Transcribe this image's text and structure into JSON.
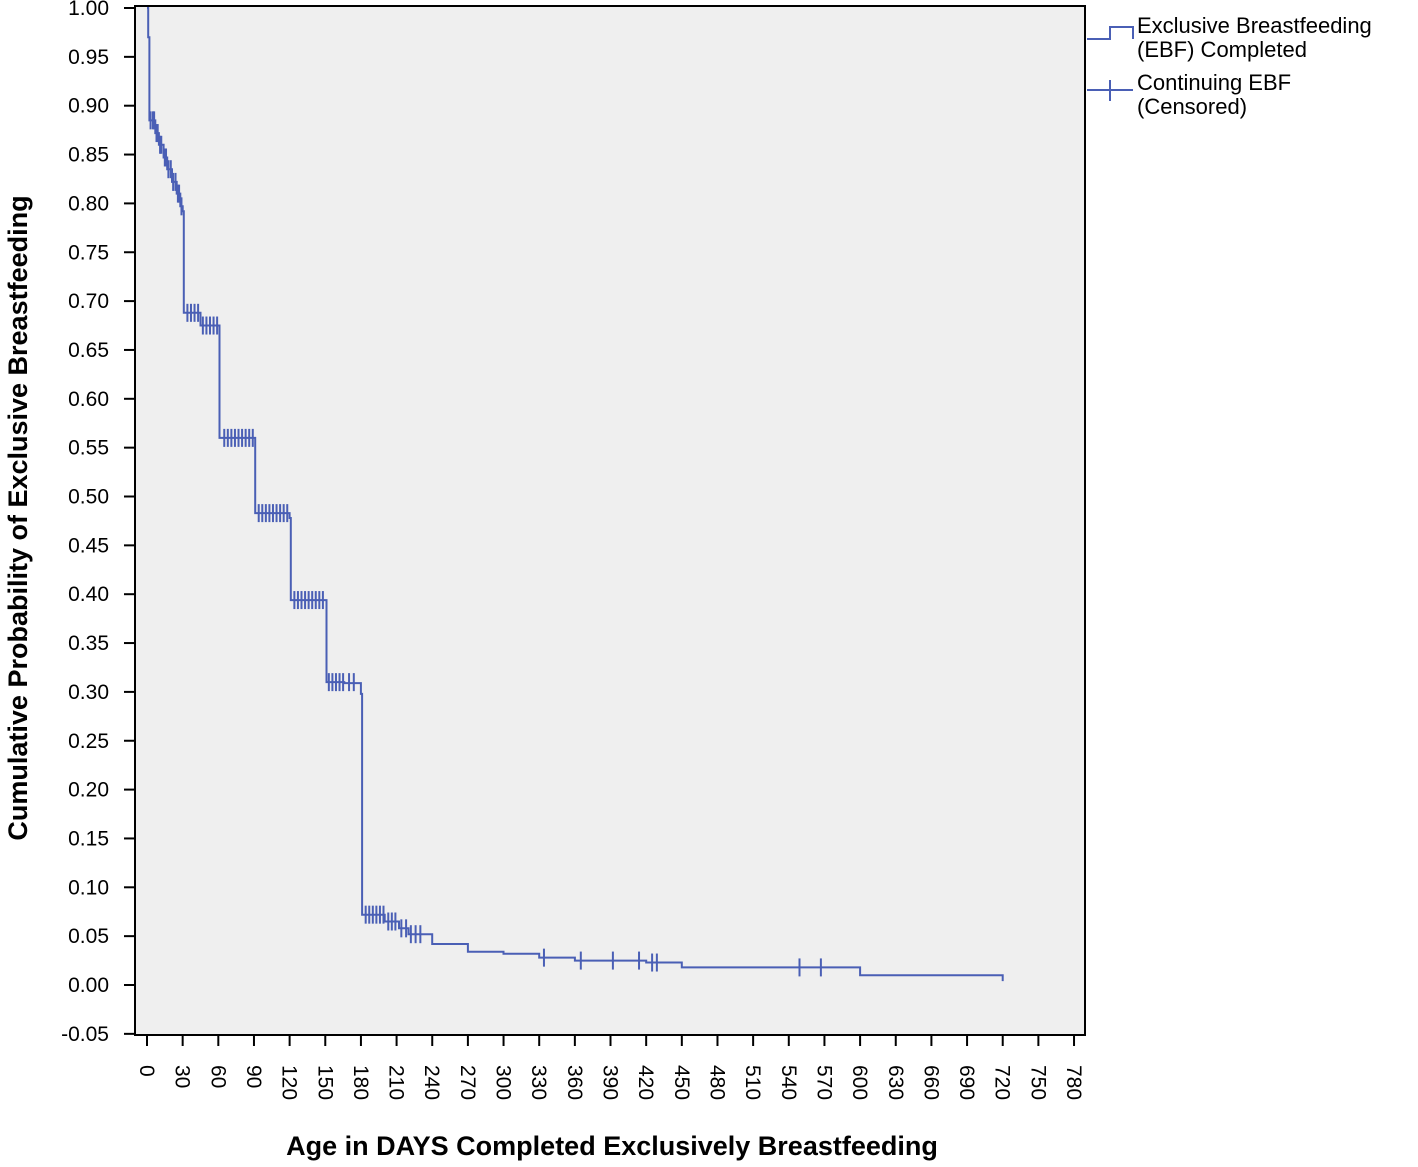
{
  "chart_data": {
    "type": "line",
    "subtype": "kaplan-meier",
    "title": "",
    "xlabel": "Age in DAYS Completed Exclusively Breastfeeding",
    "ylabel": "Cumulative Probability of Exclusive Breastfeeding",
    "xlim": [
      -10,
      790
    ],
    "ylim": [
      -0.05,
      1.0
    ],
    "x_ticks": [
      0,
      30,
      60,
      90,
      120,
      150,
      180,
      210,
      240,
      270,
      300,
      330,
      360,
      390,
      420,
      450,
      480,
      510,
      540,
      570,
      600,
      630,
      660,
      690,
      720,
      750,
      780
    ],
    "x_tick_labels": [
      "0",
      "30",
      "60",
      "90",
      "120",
      "150",
      "180",
      "210",
      "240",
      "270",
      "300",
      "330",
      "360",
      "390",
      "420",
      "450",
      "480",
      "510",
      "540",
      "570",
      "600",
      "630",
      "660",
      "690",
      "720",
      "750",
      "780"
    ],
    "y_ticks": [
      -0.05,
      0.0,
      0.05,
      0.1,
      0.15,
      0.2,
      0.25,
      0.3,
      0.35,
      0.4,
      0.45,
      0.5,
      0.55,
      0.6,
      0.65,
      0.7,
      0.75,
      0.8,
      0.85,
      0.9,
      0.95,
      1.0
    ],
    "y_tick_labels": [
      "-0.05",
      "0.00",
      "0.05",
      "0.10",
      "0.15",
      "0.20",
      "0.25",
      "0.30",
      "0.35",
      "0.40",
      "0.45",
      "0.50",
      "0.55",
      "0.60",
      "0.65",
      "0.70",
      "0.75",
      "0.80",
      "0.85",
      "0.90",
      "0.95",
      "1.00"
    ],
    "grid": false,
    "legend_position": "right-top",
    "colors": {
      "line": "#4a5fb5",
      "plot_bg": "#efefef",
      "axis": "#000000"
    },
    "series": [
      {
        "name": "Exclusive Breastfeeding (EBF) Completed",
        "step_points": [
          [
            0,
            1.0
          ],
          [
            1,
            1.0
          ],
          [
            1,
            0.97
          ],
          [
            2,
            0.97
          ],
          [
            2,
            0.885
          ],
          [
            7,
            0.885
          ],
          [
            7,
            0.872
          ],
          [
            10,
            0.872
          ],
          [
            10,
            0.86
          ],
          [
            14,
            0.86
          ],
          [
            14,
            0.847
          ],
          [
            17,
            0.847
          ],
          [
            17,
            0.835
          ],
          [
            21,
            0.835
          ],
          [
            21,
            0.822
          ],
          [
            25,
            0.822
          ],
          [
            25,
            0.81
          ],
          [
            28,
            0.81
          ],
          [
            28,
            0.797
          ],
          [
            30,
            0.797
          ],
          [
            30,
            0.792
          ],
          [
            31,
            0.792
          ],
          [
            31,
            0.688
          ],
          [
            45,
            0.688
          ],
          [
            45,
            0.675
          ],
          [
            61,
            0.675
          ],
          [
            61,
            0.56
          ],
          [
            91,
            0.56
          ],
          [
            91,
            0.483
          ],
          [
            120,
            0.483
          ],
          [
            120,
            0.478
          ],
          [
            121,
            0.478
          ],
          [
            121,
            0.394
          ],
          [
            151,
            0.394
          ],
          [
            151,
            0.31
          ],
          [
            166,
            0.31
          ],
          [
            166,
            0.309
          ],
          [
            180,
            0.309
          ],
          [
            180,
            0.298
          ],
          [
            181,
            0.298
          ],
          [
            181,
            0.072
          ],
          [
            200,
            0.072
          ],
          [
            200,
            0.065
          ],
          [
            212,
            0.065
          ],
          [
            212,
            0.058
          ],
          [
            220,
            0.058
          ],
          [
            220,
            0.052
          ],
          [
            240,
            0.052
          ],
          [
            240,
            0.042
          ],
          [
            270,
            0.042
          ],
          [
            270,
            0.034
          ],
          [
            300,
            0.034
          ],
          [
            300,
            0.032
          ],
          [
            330,
            0.032
          ],
          [
            330,
            0.028
          ],
          [
            360,
            0.028
          ],
          [
            360,
            0.025
          ],
          [
            420,
            0.025
          ],
          [
            420,
            0.023
          ],
          [
            450,
            0.023
          ],
          [
            450,
            0.018
          ],
          [
            600,
            0.018
          ],
          [
            600,
            0.01
          ],
          [
            720,
            0.01
          ],
          [
            720,
            0.004
          ]
        ]
      },
      {
        "name": "Continuing EBF (Censored)",
        "censored_marks": [
          [
            3,
            0.885
          ],
          [
            5,
            0.885
          ],
          [
            6,
            0.885
          ],
          [
            8,
            0.872
          ],
          [
            9,
            0.872
          ],
          [
            11,
            0.86
          ],
          [
            12,
            0.86
          ],
          [
            15,
            0.847
          ],
          [
            16,
            0.847
          ],
          [
            18,
            0.835
          ],
          [
            20,
            0.835
          ],
          [
            22,
            0.822
          ],
          [
            24,
            0.822
          ],
          [
            26,
            0.81
          ],
          [
            27,
            0.81
          ],
          [
            29,
            0.797
          ],
          [
            34,
            0.688
          ],
          [
            37,
            0.688
          ],
          [
            40,
            0.688
          ],
          [
            43,
            0.688
          ],
          [
            47,
            0.675
          ],
          [
            50,
            0.675
          ],
          [
            53,
            0.675
          ],
          [
            56,
            0.675
          ],
          [
            59,
            0.675
          ],
          [
            65,
            0.56
          ],
          [
            68,
            0.56
          ],
          [
            71,
            0.56
          ],
          [
            74,
            0.56
          ],
          [
            77,
            0.56
          ],
          [
            80,
            0.56
          ],
          [
            83,
            0.56
          ],
          [
            86,
            0.56
          ],
          [
            89,
            0.56
          ],
          [
            94,
            0.483
          ],
          [
            97,
            0.483
          ],
          [
            100,
            0.483
          ],
          [
            103,
            0.483
          ],
          [
            106,
            0.483
          ],
          [
            109,
            0.483
          ],
          [
            112,
            0.483
          ],
          [
            115,
            0.483
          ],
          [
            118,
            0.483
          ],
          [
            124,
            0.394
          ],
          [
            127,
            0.394
          ],
          [
            130,
            0.394
          ],
          [
            133,
            0.394
          ],
          [
            136,
            0.394
          ],
          [
            139,
            0.394
          ],
          [
            142,
            0.394
          ],
          [
            145,
            0.394
          ],
          [
            148,
            0.394
          ],
          [
            153,
            0.31
          ],
          [
            156,
            0.31
          ],
          [
            159,
            0.31
          ],
          [
            162,
            0.31
          ],
          [
            165,
            0.31
          ],
          [
            170,
            0.31
          ],
          [
            174,
            0.31
          ],
          [
            184,
            0.072
          ],
          [
            187,
            0.072
          ],
          [
            190,
            0.072
          ],
          [
            193,
            0.072
          ],
          [
            196,
            0.072
          ],
          [
            199,
            0.072
          ],
          [
            203,
            0.065
          ],
          [
            206,
            0.065
          ],
          [
            209,
            0.065
          ],
          [
            214,
            0.058
          ],
          [
            218,
            0.058
          ],
          [
            222,
            0.052
          ],
          [
            226,
            0.052
          ],
          [
            230,
            0.052
          ],
          [
            334,
            0.028
          ],
          [
            365,
            0.025
          ],
          [
            392,
            0.025
          ],
          [
            414,
            0.025
          ],
          [
            425,
            0.023
          ],
          [
            429,
            0.023
          ],
          [
            549,
            0.018
          ],
          [
            567,
            0.018
          ]
        ]
      }
    ]
  }
}
